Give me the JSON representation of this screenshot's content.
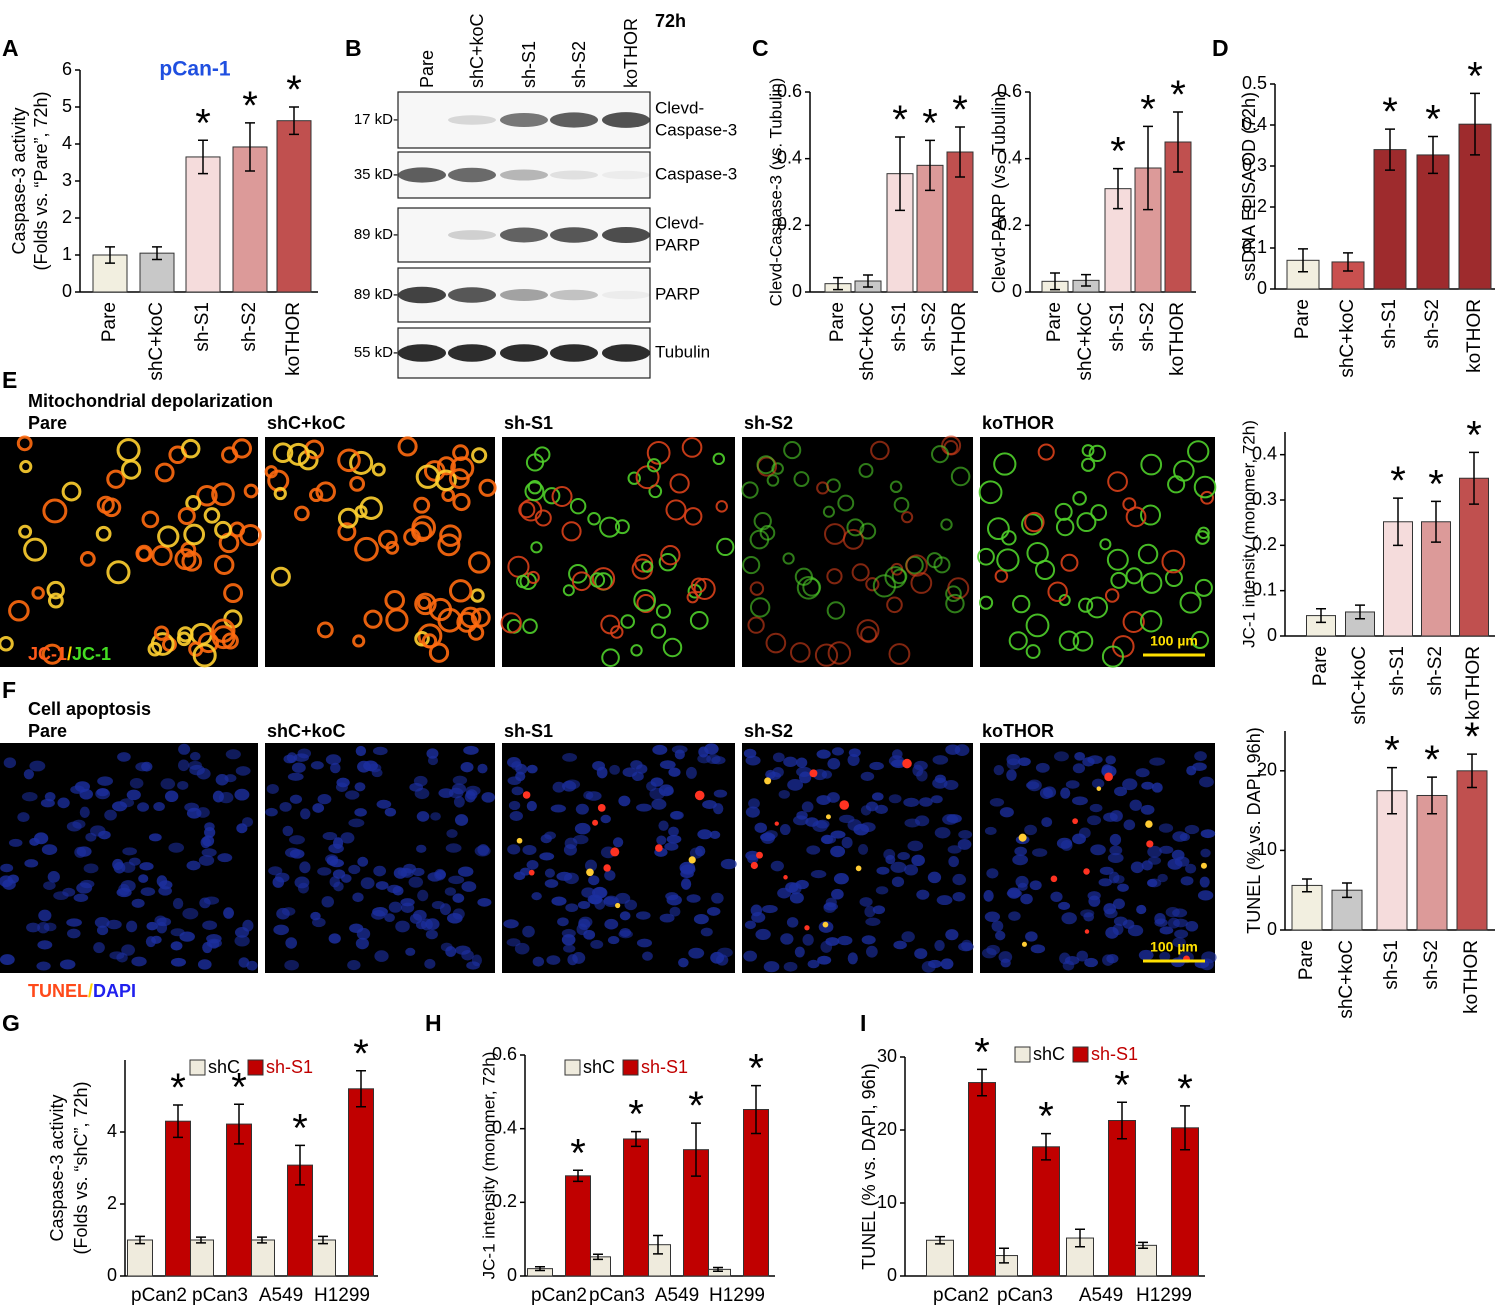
{
  "panel_labels": [
    "A",
    "B",
    "C",
    "D",
    "E",
    "F",
    "G",
    "H",
    "I"
  ],
  "blot": {
    "timepoint": "72h",
    "lanes": [
      "Pare",
      "shC+koC",
      "sh-S1",
      "sh-S2",
      "koTHOR"
    ],
    "rows": [
      {
        "size": "17 kD-",
        "protein": [
          "Clevd-",
          "Caspase-3"
        ]
      },
      {
        "size": "35 kD-",
        "protein": [
          "Caspase-3"
        ]
      },
      {
        "size": "89 kD-",
        "protein": [
          "Clevd-",
          "PARP"
        ]
      },
      {
        "size": "89 kD-",
        "protein": [
          "PARP"
        ]
      },
      {
        "size": "55 kD-",
        "protein": [
          "Tubulin"
        ]
      }
    ]
  },
  "images": {
    "E": {
      "title": "Mitochondrial depolarization",
      "conditions": [
        "Pare",
        "shC+koC",
        "sh-S1",
        "sh-S2",
        "koTHOR"
      ],
      "stain": [
        "JC-1",
        "/",
        "JC-1"
      ],
      "scale": "100 µm"
    },
    "F": {
      "title": "Cell apoptosis",
      "conditions": [
        "Pare",
        "shC+koC",
        "sh-S1",
        "sh-S2",
        "koTHOR"
      ],
      "stain": [
        "TUNEL",
        "/",
        "DAPI"
      ],
      "scale": "100 µm"
    }
  },
  "chart_data": [
    {
      "type": "bar",
      "title": "pCan-1",
      "ylabel": [
        "Caspase-3 activity",
        "(Folds vs. “Pare”, 72h)"
      ],
      "categories": [
        "Pare",
        "shC+koC",
        "sh-S1",
        "sh-S2",
        "koTHOR"
      ],
      "values": [
        1.0,
        1.05,
        3.65,
        3.92,
        4.63
      ],
      "errors": [
        0.22,
        0.17,
        0.45,
        0.65,
        0.37
      ],
      "colors": [
        "#f2efe0",
        "#c8c8c8",
        "#f5dcdc",
        "#dc9a99",
        "#c0504f"
      ],
      "ylim": [
        0,
        6
      ],
      "yticks": [
        0,
        1,
        2,
        3,
        4,
        5,
        6
      ],
      "annotations": [
        {
          "category": "sh-S1",
          "text": "*"
        },
        {
          "category": "sh-S2",
          "text": "*"
        },
        {
          "category": "koTHOR",
          "text": "*"
        }
      ]
    },
    {
      "type": "bar",
      "ylabel": [
        "Clevd-Caspase-3 (vs. Tubulin)"
      ],
      "categories": [
        "Pare",
        "shC+koC",
        "sh-S1",
        "sh-S2",
        "koTHOR"
      ],
      "values": [
        0.025,
        0.033,
        0.355,
        0.38,
        0.42
      ],
      "errors": [
        0.018,
        0.018,
        0.11,
        0.075,
        0.075
      ],
      "colors": [
        "#f2efe0",
        "#c8c8c8",
        "#f5dcdc",
        "#dc9a99",
        "#c0504f"
      ],
      "ylim": [
        0,
        0.6
      ],
      "yticks": [
        0,
        0.2,
        0.4,
        0.6
      ],
      "annotations": [
        {
          "category": "sh-S1",
          "text": "*"
        },
        {
          "category": "sh-S2",
          "text": "*"
        },
        {
          "category": "koTHOR",
          "text": "*"
        }
      ]
    },
    {
      "type": "bar",
      "ylabel": [
        "Clevd-PARP (vs. Tubulin)"
      ],
      "categories": [
        "Pare",
        "shC+koC",
        "sh-S1",
        "sh-S2",
        "koTHOR"
      ],
      "values": [
        0.032,
        0.035,
        0.31,
        0.372,
        0.45
      ],
      "errors": [
        0.025,
        0.017,
        0.06,
        0.125,
        0.09
      ],
      "colors": [
        "#f2efe0",
        "#c8c8c8",
        "#f5dcdc",
        "#dc9a99",
        "#c0504f"
      ],
      "ylim": [
        0,
        0.6
      ],
      "yticks": [
        0,
        0.2,
        0.4,
        0.6
      ],
      "annotations": [
        {
          "category": "sh-S1",
          "text": "*"
        },
        {
          "category": "sh-S2",
          "text": "*"
        },
        {
          "category": "koTHOR",
          "text": "*"
        }
      ]
    },
    {
      "type": "bar",
      "ylabel": [
        "ssDNA ELISA OD (72h)"
      ],
      "categories": [
        "Pare",
        "shC+koC",
        "sh-S1",
        "sh-S2",
        "koTHOR"
      ],
      "values": [
        0.07,
        0.066,
        0.34,
        0.327,
        0.402
      ],
      "errors": [
        0.028,
        0.022,
        0.05,
        0.045,
        0.075
      ],
      "colors": [
        "#f2efe0",
        "#c9504f",
        "#9e2b2d",
        "#9e2b2d",
        "#9e2b2d"
      ],
      "ylim": [
        0,
        0.5
      ],
      "yticks": [
        0,
        0.1,
        0.2,
        0.3,
        0.4,
        0.5
      ],
      "annotations": [
        {
          "category": "sh-S1",
          "text": "*"
        },
        {
          "category": "sh-S2",
          "text": "*"
        },
        {
          "category": "koTHOR",
          "text": "*"
        }
      ]
    },
    {
      "type": "bar",
      "ylabel": [
        "JC-1 intensity (monomer, 72h)"
      ],
      "categories": [
        "Pare",
        "shC+koC",
        "sh-S1",
        "sh-S2",
        "koTHOR"
      ],
      "values": [
        0.045,
        0.053,
        0.252,
        0.252,
        0.348
      ],
      "errors": [
        0.015,
        0.015,
        0.052,
        0.045,
        0.057
      ],
      "colors": [
        "#f2efe0",
        "#c8c8c8",
        "#f5dcdc",
        "#dc9a99",
        "#c0504f"
      ],
      "ylim": [
        0,
        0.45
      ],
      "yticks": [
        0,
        0.1,
        0.2,
        0.3,
        0.4
      ],
      "annotations": [
        {
          "category": "sh-S1",
          "text": "*"
        },
        {
          "category": "sh-S2",
          "text": "*"
        },
        {
          "category": "koTHOR",
          "text": "*"
        }
      ]
    },
    {
      "type": "bar",
      "ylabel": [
        "TUNEL (% vs. DAPI, 96h)"
      ],
      "categories": [
        "Pare",
        "shC+koC",
        "sh-S1",
        "sh-S2",
        "koTHOR"
      ],
      "values": [
        5.6,
        5.0,
        17.5,
        16.9,
        20.0
      ],
      "errors": [
        0.8,
        0.9,
        2.9,
        2.3,
        2.1
      ],
      "colors": [
        "#f2efe0",
        "#c8c8c8",
        "#f5dcdc",
        "#dc9a99",
        "#c0504f"
      ],
      "ylim": [
        0,
        25
      ],
      "yticks": [
        0,
        10,
        20
      ],
      "annotations": [
        {
          "category": "sh-S1",
          "text": "*"
        },
        {
          "category": "sh-S2",
          "text": "*"
        },
        {
          "category": "koTHOR",
          "text": "*"
        }
      ]
    },
    {
      "type": "grouped_bar",
      "ylabel": [
        "Caspase-3 activity",
        "(Folds vs. “shC”, 72h)"
      ],
      "categories": [
        "pCan2",
        "pCan3",
        "A549",
        "H1299"
      ],
      "series": [
        {
          "name": "shC",
          "color": "#efebdd",
          "values": [
            1.0,
            1.0,
            1.0,
            1.0
          ],
          "errors": [
            0.1,
            0.08,
            0.08,
            0.1
          ]
        },
        {
          "name": "sh-S1",
          "color": "#c00000",
          "values": [
            4.3,
            4.22,
            3.08,
            5.2
          ],
          "errors": [
            0.45,
            0.55,
            0.55,
            0.5
          ]
        }
      ],
      "ylim": [
        0,
        6
      ],
      "yticks": [
        0,
        2,
        4
      ],
      "annotations": [
        {
          "category": "pCan2",
          "series": "sh-S1",
          "text": "*"
        },
        {
          "category": "pCan3",
          "series": "sh-S1",
          "text": "*"
        },
        {
          "category": "A549",
          "series": "sh-S1",
          "text": "*"
        },
        {
          "category": "H1299",
          "series": "sh-S1",
          "text": "*"
        }
      ]
    },
    {
      "type": "grouped_bar",
      "ylabel": [
        "JC-1 intensity (monomer, 72h)"
      ],
      "categories": [
        "pCan2",
        "pCan3",
        "A549",
        "H1299"
      ],
      "series": [
        {
          "name": "shC",
          "color": "#efebdd",
          "values": [
            0.02,
            0.052,
            0.085,
            0.018
          ],
          "errors": [
            0.005,
            0.007,
            0.025,
            0.005
          ]
        },
        {
          "name": "sh-S1",
          "color": "#c00000",
          "values": [
            0.272,
            0.372,
            0.343,
            0.452
          ],
          "errors": [
            0.015,
            0.02,
            0.072,
            0.065
          ]
        }
      ],
      "ylim": [
        0,
        0.6
      ],
      "yticks": [
        0,
        0.2,
        0.4,
        0.6
      ],
      "annotations": [
        {
          "category": "pCan2",
          "series": "sh-S1",
          "text": "*"
        },
        {
          "category": "pCan3",
          "series": "sh-S1",
          "text": "*"
        },
        {
          "category": "A549",
          "series": "sh-S1",
          "text": "*"
        },
        {
          "category": "H1299",
          "series": "sh-S1",
          "text": "*"
        }
      ]
    },
    {
      "type": "grouped_bar",
      "ylabel": [
        "TUNEL (% vs. DAPI, 96h)"
      ],
      "categories": [
        "pCan2",
        "pCan3",
        "A549",
        "H1299"
      ],
      "series": [
        {
          "name": "shC",
          "color": "#efebdd",
          "values": [
            4.9,
            2.8,
            5.2,
            4.2
          ],
          "errors": [
            0.5,
            1.0,
            1.2,
            0.4
          ]
        },
        {
          "name": "sh-S1",
          "color": "#c00000",
          "values": [
            26.5,
            17.7,
            21.3,
            20.3
          ],
          "errors": [
            1.8,
            1.8,
            2.5,
            3.0
          ]
        }
      ],
      "ylim": [
        0,
        30
      ],
      "yticks": [
        0,
        10,
        20,
        30
      ],
      "annotations": [
        {
          "category": "pCan2",
          "series": "sh-S1",
          "text": "*"
        },
        {
          "category": "pCan3",
          "series": "sh-S1",
          "text": "*"
        },
        {
          "category": "A549",
          "series": "sh-S1",
          "text": "*"
        },
        {
          "category": "H1299",
          "series": "sh-S1",
          "text": "*"
        }
      ]
    }
  ]
}
